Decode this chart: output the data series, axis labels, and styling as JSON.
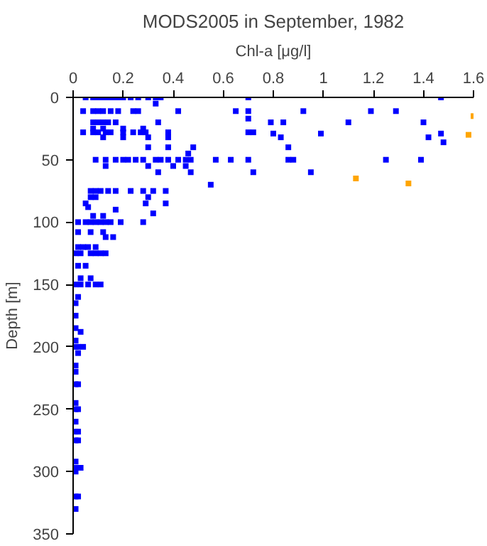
{
  "chart_data": {
    "type": "scatter",
    "title": "MODS2005 in September, 1982",
    "xlabel": "Chl-a [μg/l]",
    "ylabel": "Depth [m]",
    "xlim": [
      0,
      1.6
    ],
    "xticks": [
      0,
      0.2,
      0.4,
      0.6,
      0.8,
      1,
      1.2,
      1.4,
      1.6
    ],
    "ylim": [
      350,
      0
    ],
    "yticks": [
      0,
      50,
      100,
      150,
      200,
      250,
      300,
      350
    ],
    "grid": false,
    "marker": "square",
    "series": [
      {
        "color": "#0000ff",
        "x": [
          0.05,
          0.08,
          0.1,
          0.12,
          0.14,
          0.16,
          0.18,
          0.2,
          0.23,
          0.26,
          0.3,
          0.33,
          0.35,
          0.7,
          1.47,
          0.33,
          0.04,
          0.08,
          0.1,
          0.12,
          0.15,
          0.18,
          0.24,
          0.26,
          0.42,
          0.65,
          0.7,
          0.92,
          1.19,
          1.29,
          0.7,
          0.08,
          0.1,
          0.12,
          0.14,
          0.17,
          0.34,
          0.79,
          0.84,
          1.1,
          1.4,
          0.08,
          0.12,
          0.2,
          0.28,
          0.04,
          0.08,
          0.1,
          0.13,
          0.15,
          0.2,
          0.24,
          0.27,
          0.29,
          0.38,
          0.7,
          0.72,
          0.8,
          0.99,
          1.47,
          0.12,
          0.2,
          0.3,
          0.38,
          0.83,
          1.42,
          1.48,
          0.3,
          0.38,
          0.86,
          0.48,
          0.46,
          0.09,
          0.13,
          0.17,
          0.2,
          0.22,
          0.25,
          0.28,
          0.33,
          0.35,
          0.38,
          0.42,
          0.45,
          0.47,
          0.57,
          0.63,
          0.7,
          0.86,
          0.88,
          1.25,
          1.39,
          0.13,
          0.3,
          0.4,
          0.45,
          0.34,
          0.47,
          0.72,
          0.95,
          0.55,
          0.07,
          0.09,
          0.11,
          0.14,
          0.17,
          0.23,
          0.28,
          0.32,
          0.37,
          0.07,
          0.09,
          0.3,
          0.05,
          0.29,
          0.37,
          0.06,
          0.08,
          0.12,
          0.02,
          0.05,
          0.07,
          0.09,
          0.11,
          0.13,
          0.15,
          0.19,
          0.28,
          0.32,
          0.17,
          0.02,
          0.07,
          0.12,
          0.13,
          0.16,
          0.02,
          0.04,
          0.06,
          0.09,
          0.01,
          0.03,
          0.07,
          0.09,
          0.11,
          0.13,
          0.02,
          0.05,
          0.03,
          0.07,
          0.01,
          0.03,
          0.06,
          0.09,
          0.11,
          0.02,
          0.01,
          0.01,
          0.01,
          0.03,
          0.01,
          0.01,
          0.02,
          0.04,
          0.02,
          0.01,
          0.01,
          0.01,
          0.02,
          0.01,
          0.01,
          0.02,
          0.01,
          0.01,
          0.02,
          0.01,
          0.02,
          0.01,
          0.01,
          0.03,
          0.01,
          0.01,
          0.02,
          0.01
        ],
        "values": [
          0,
          0,
          0,
          0,
          0,
          0,
          0,
          0,
          0,
          0,
          0,
          0,
          0,
          0,
          0,
          5,
          11,
          11,
          11,
          11,
          11,
          11,
          11,
          11,
          11,
          11,
          11,
          11,
          11,
          11,
          17,
          20,
          20,
          20,
          20,
          20,
          20,
          20,
          20,
          20,
          20,
          25,
          25,
          25,
          25,
          28,
          28,
          28,
          28,
          28,
          28,
          28,
          28,
          28,
          28,
          28,
          28,
          29,
          29,
          29,
          32,
          32,
          32,
          32,
          32,
          32,
          36,
          40,
          40,
          40,
          40,
          45,
          50,
          50,
          50,
          50,
          50,
          50,
          50,
          50,
          50,
          50,
          50,
          50,
          50,
          50,
          50,
          50,
          50,
          50,
          50,
          50,
          55,
          55,
          55,
          55,
          60,
          60,
          60,
          60,
          70,
          75,
          75,
          75,
          75,
          75,
          75,
          75,
          75,
          75,
          80,
          80,
          80,
          85,
          85,
          85,
          88,
          95,
          95,
          100,
          100,
          100,
          100,
          100,
          100,
          100,
          100,
          100,
          93,
          90,
          108,
          108,
          108,
          112,
          112,
          120,
          120,
          120,
          120,
          125,
          125,
          125,
          125,
          125,
          125,
          135,
          135,
          145,
          145,
          150,
          150,
          150,
          150,
          150,
          160,
          165,
          175,
          185,
          188,
          195,
          200,
          200,
          200,
          205,
          215,
          220,
          230,
          230,
          245,
          250,
          250,
          260,
          268,
          268,
          275,
          275,
          292,
          297,
          297,
          300,
          320,
          320,
          330
        ]
      },
      {
        "color": "#ffa500",
        "x": [
          1.6,
          1.58,
          1.13,
          1.34
        ],
        "values": [
          15,
          30,
          65,
          69
        ]
      }
    ]
  }
}
